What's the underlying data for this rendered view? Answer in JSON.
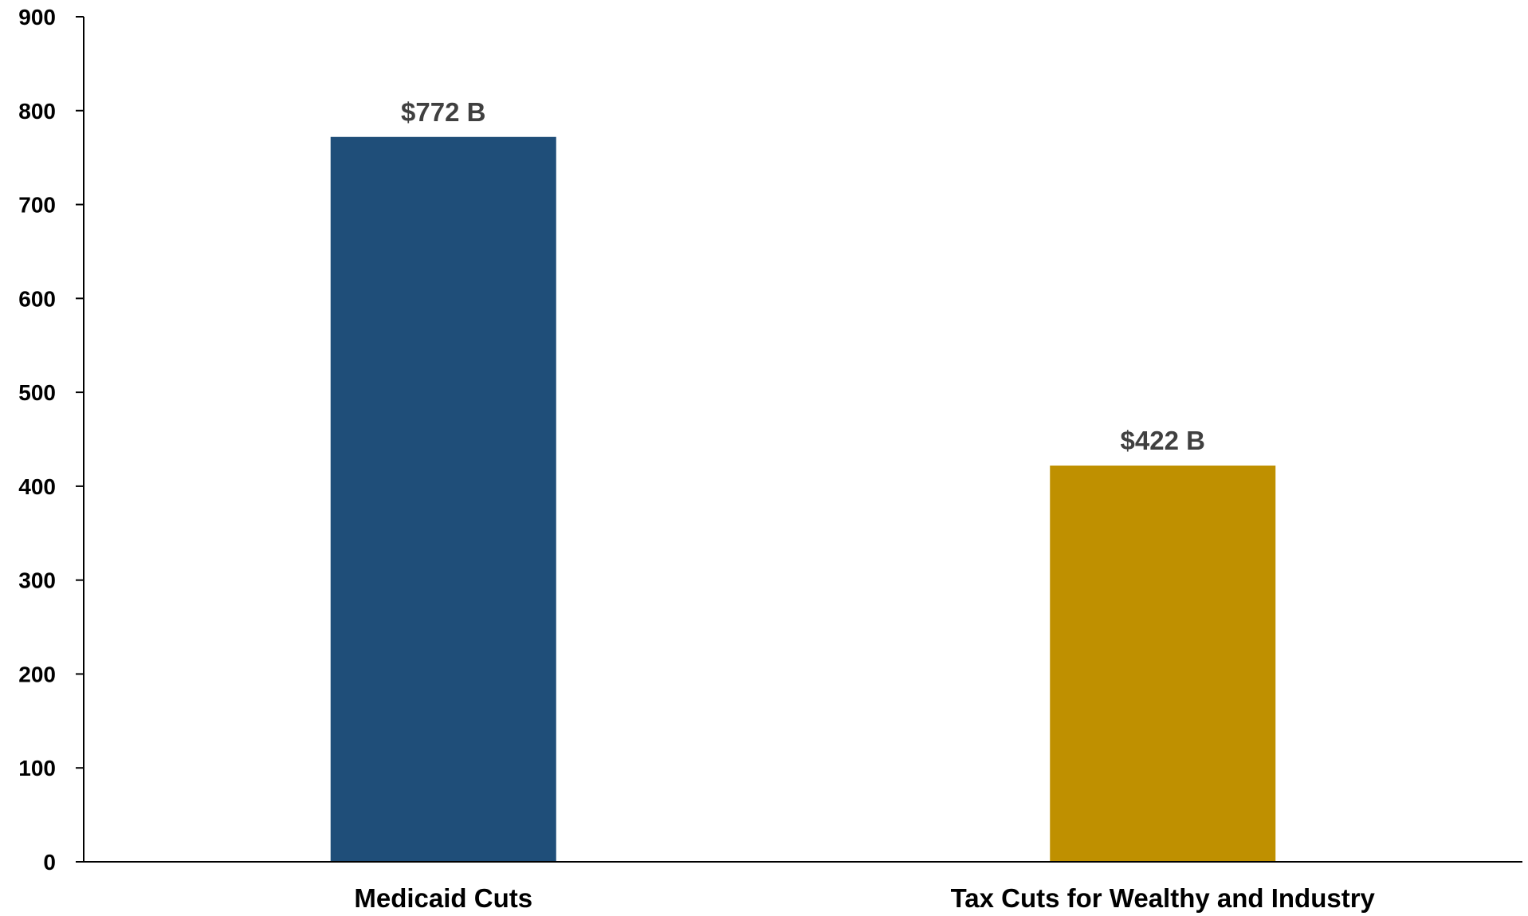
{
  "chart_data": {
    "type": "bar",
    "categories": [
      "Medicaid Cuts",
      "Tax Cuts for Wealthy and Industry"
    ],
    "values": [
      772,
      422
    ],
    "data_labels": [
      "$772 B",
      "$422 B"
    ],
    "colors": [
      "#1f4e79",
      "#bf9000"
    ],
    "title": "",
    "xlabel": "",
    "ylabel": "",
    "ylim": [
      0,
      900
    ],
    "yticks": [
      0,
      100,
      200,
      300,
      400,
      500,
      600,
      700,
      800,
      900
    ],
    "grid": false,
    "legend": "none"
  }
}
